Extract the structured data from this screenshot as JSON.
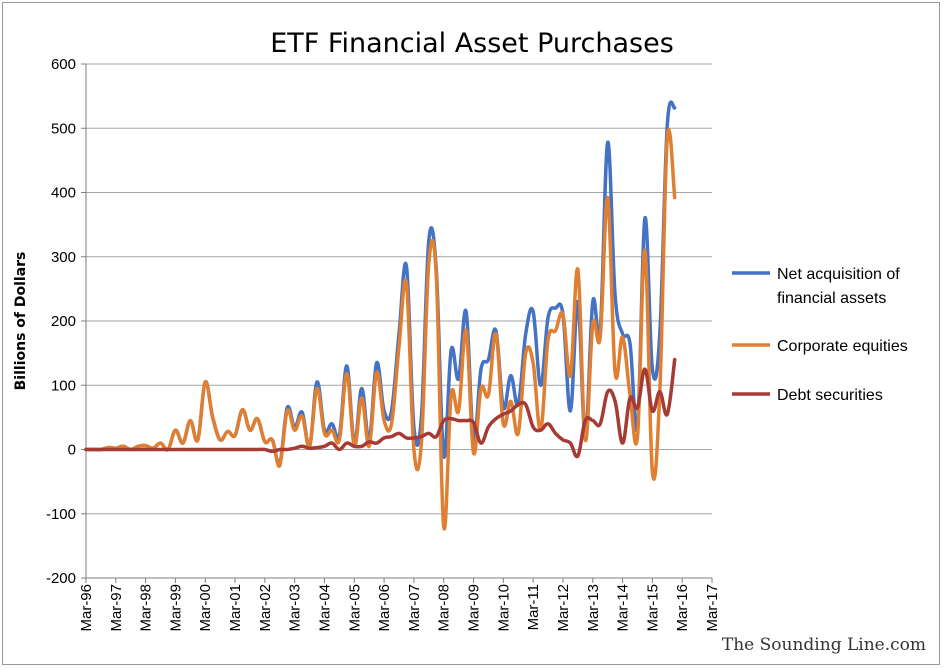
{
  "chart_data": {
    "type": "line",
    "title": "ETF Financial Asset Purchases",
    "ylabel": "Billions of Dollars",
    "xlabel": "",
    "ylim": [
      -200,
      600
    ],
    "yticks": [
      -200,
      -100,
      0,
      100,
      200,
      300,
      400,
      500,
      600
    ],
    "xticks": [
      "Mar-96",
      "Mar-97",
      "Mar-98",
      "Mar-99",
      "Mar-00",
      "Mar-01",
      "Mar-02",
      "Mar-03",
      "Mar-04",
      "Mar-05",
      "Mar-06",
      "Mar-07",
      "Mar-08",
      "Mar-09",
      "Mar-10",
      "Mar-11",
      "Mar-12",
      "Mar-13",
      "Mar-14",
      "Mar-15",
      "Mar-16",
      "Mar-17"
    ],
    "x_start": "1996-Q1",
    "frequency": "quarterly",
    "grid": "horizontal",
    "legend_position": "right",
    "series": [
      {
        "name": "Net acquisition of financial assets",
        "color": "#4472c4",
        "values": [
          0,
          0,
          0,
          3,
          2,
          5,
          0,
          5,
          6,
          2,
          10,
          0,
          30,
          10,
          45,
          15,
          105,
          50,
          15,
          28,
          22,
          62,
          30,
          48,
          12,
          15,
          -22,
          65,
          35,
          58,
          5,
          105,
          30,
          40,
          22,
          130,
          10,
          95,
          15,
          135,
          60,
          60,
          180,
          285,
          35,
          50,
          325,
          280,
          -10,
          155,
          110,
          215,
          15,
          125,
          140,
          185,
          65,
          115,
          70,
          180,
          215,
          100,
          205,
          220,
          210,
          60,
          230,
          20,
          230,
          185,
          478,
          240,
          180,
          165,
          35,
          360,
          125,
          180,
          505,
          532
        ],
        "x_end": "2017-Q1"
      },
      {
        "name": "Corporate equities",
        "color": "#e07f32",
        "values": [
          0,
          0,
          0,
          3,
          2,
          5,
          0,
          5,
          6,
          2,
          10,
          0,
          30,
          10,
          45,
          15,
          105,
          50,
          15,
          28,
          22,
          62,
          30,
          48,
          12,
          15,
          -25,
          60,
          30,
          52,
          5,
          95,
          25,
          30,
          15,
          118,
          5,
          80,
          5,
          120,
          45,
          40,
          160,
          258,
          0,
          10,
          290,
          270,
          -120,
          85,
          60,
          185,
          -5,
          95,
          85,
          180,
          40,
          75,
          25,
          150,
          135,
          30,
          170,
          185,
          210,
          115,
          280,
          15,
          195,
          175,
          392,
          120,
          175,
          85,
          20,
          310,
          -35,
          90,
          485,
          392
        ],
        "x_end": "2017-Q1"
      },
      {
        "name": "Debt securities",
        "color": "#a63a35",
        "values": [
          0,
          0,
          0,
          0,
          0,
          0,
          0,
          0,
          0,
          0,
          0,
          0,
          0,
          0,
          0,
          0,
          0,
          0,
          0,
          0,
          0,
          0,
          0,
          0,
          0,
          -3,
          0,
          0,
          2,
          5,
          2,
          3,
          5,
          10,
          0,
          10,
          5,
          5,
          12,
          10,
          18,
          20,
          25,
          18,
          18,
          20,
          25,
          20,
          45,
          48,
          45,
          45,
          42,
          10,
          35,
          48,
          55,
          60,
          70,
          70,
          35,
          30,
          40,
          25,
          15,
          10,
          -10,
          45,
          45,
          40,
          90,
          75,
          10,
          80,
          65,
          125,
          60,
          90,
          55,
          140
        ],
        "x_end": "2017-Q1"
      }
    ]
  },
  "footer": {
    "credit": "The Sounding Line.com"
  }
}
